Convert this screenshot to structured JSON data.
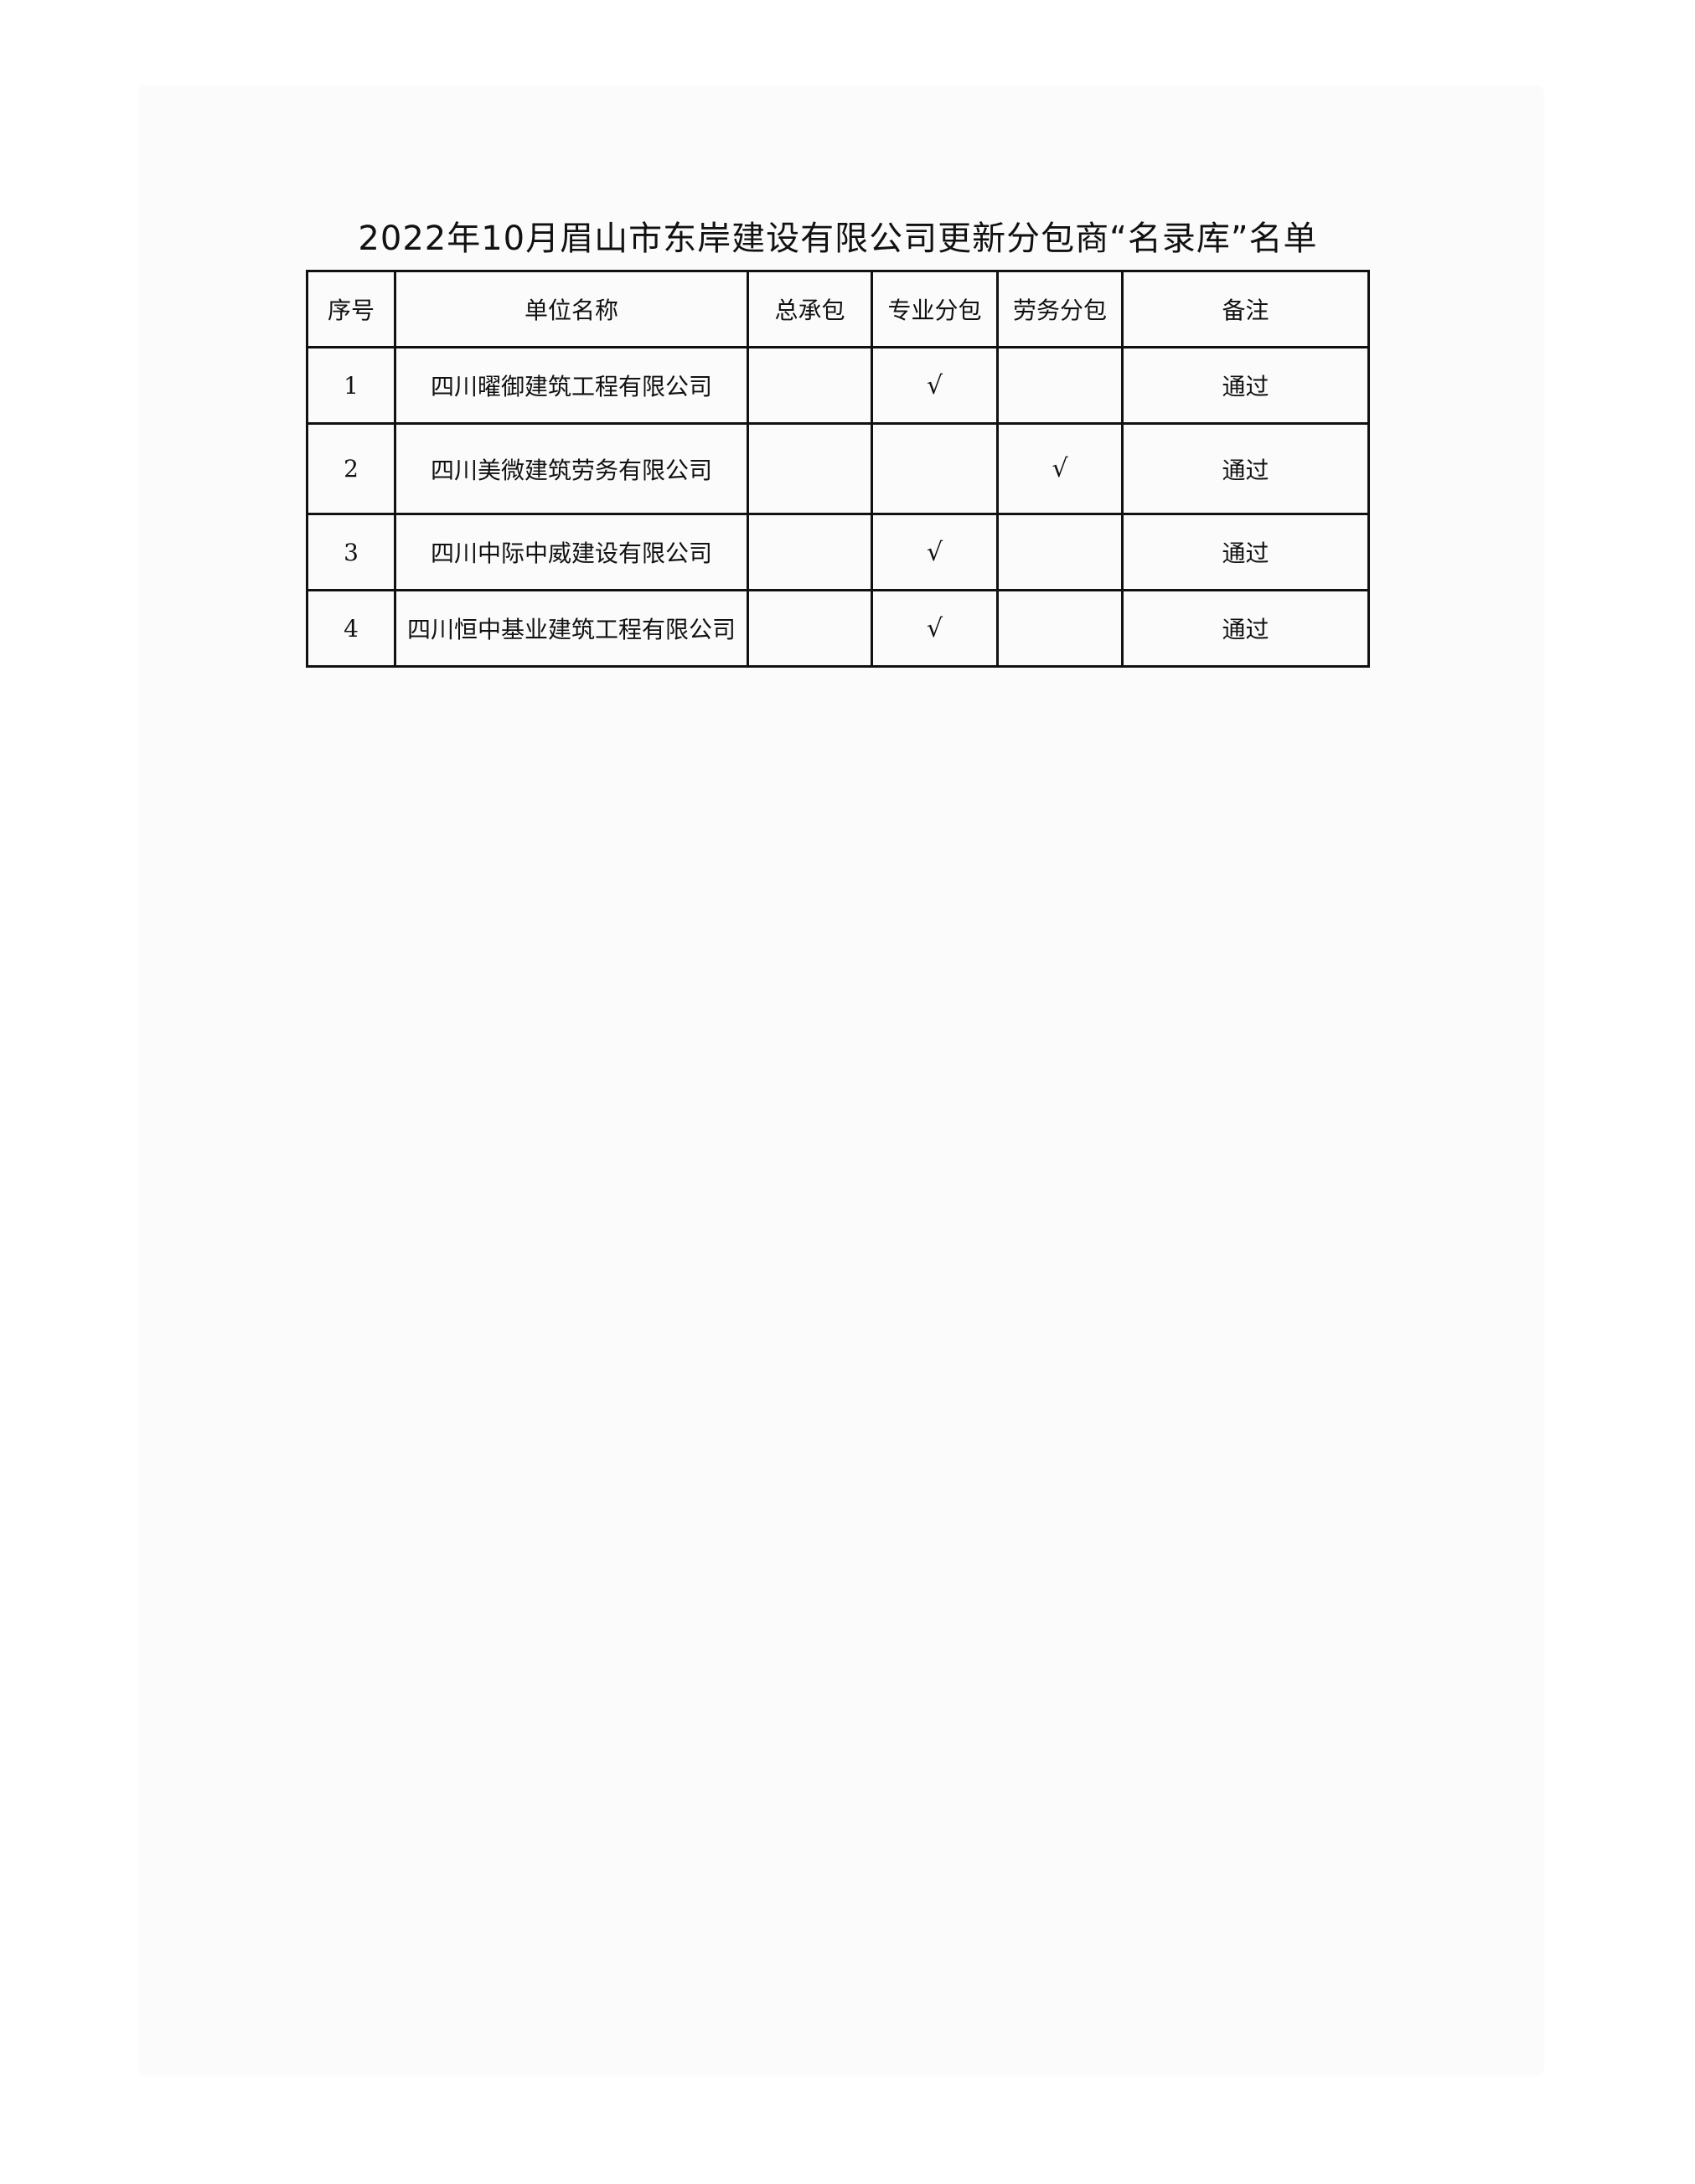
{
  "title": "2022年10月眉山市东岸建设有限公司更新分包商“名录库”名单",
  "table": {
    "headers": [
      "序号",
      "单位名称",
      "总承包",
      "专业分包",
      "劳务分包",
      "备注"
    ],
    "rows": [
      {
        "no": "1",
        "name": "四川曜御建筑工程有限公司",
        "general": "",
        "specialty": "√",
        "labor": "",
        "remark": "通过"
      },
      {
        "no": "2",
        "name": "四川美微建筑劳务有限公司",
        "general": "",
        "specialty": "",
        "labor": "√",
        "remark": "通过"
      },
      {
        "no": "3",
        "name": "四川中际中威建设有限公司",
        "general": "",
        "specialty": "√",
        "labor": "",
        "remark": "通过"
      },
      {
        "no": "4",
        "name": "四川恒中基业建筑工程有限公司",
        "general": "",
        "specialty": "√",
        "labor": "",
        "remark": "通过"
      }
    ]
  }
}
